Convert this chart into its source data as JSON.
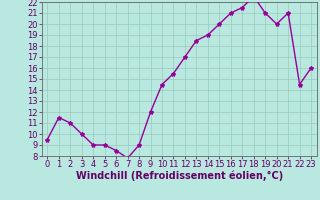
{
  "x": [
    0,
    1,
    2,
    3,
    4,
    5,
    6,
    7,
    8,
    9,
    10,
    11,
    12,
    13,
    14,
    15,
    16,
    17,
    18,
    19,
    20,
    21,
    22,
    23
  ],
  "y": [
    9.5,
    11.5,
    11.0,
    10.0,
    9.0,
    9.0,
    8.5,
    7.8,
    9.0,
    12.0,
    14.5,
    15.5,
    17.0,
    18.5,
    19.0,
    20.0,
    21.0,
    21.5,
    22.5,
    21.0,
    20.0,
    21.0,
    14.5,
    16.0
  ],
  "ylim_min": 8,
  "ylim_max": 22,
  "xlim_min": -0.5,
  "xlim_max": 23.5,
  "yticks": [
    8,
    9,
    10,
    11,
    12,
    13,
    14,
    15,
    16,
    17,
    18,
    19,
    20,
    21,
    22
  ],
  "xticks": [
    0,
    1,
    2,
    3,
    4,
    5,
    6,
    7,
    8,
    9,
    10,
    11,
    12,
    13,
    14,
    15,
    16,
    17,
    18,
    19,
    20,
    21,
    22,
    23
  ],
  "line_color": "#990099",
  "marker": "*",
  "marker_size": 3,
  "bg_color": "#b8e8e0",
  "grid_color": "#99ccbb",
  "xlabel": "Windchill (Refroidissement éolien,°C)",
  "xlabel_fontsize": 7,
  "tick_fontsize": 6,
  "line_width": 1.0,
  "tick_color": "#660066",
  "spine_color": "#666666"
}
